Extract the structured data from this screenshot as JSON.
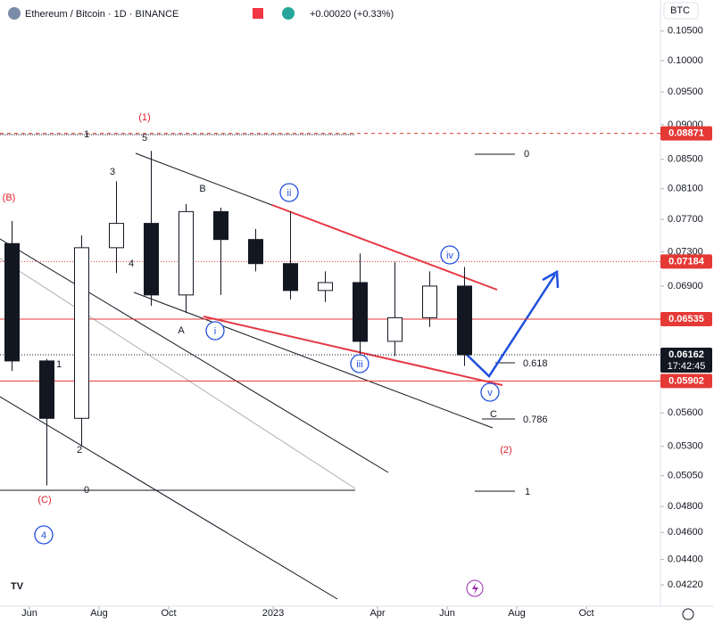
{
  "header": {
    "symbol": "Ethereum / Bitcoin · 1D · BINANCE",
    "change": "+0.00020 (+0.33%)",
    "currency": "BTC"
  },
  "chart_data": {
    "type": "candlestick",
    "log_scale": true,
    "x": [
      "2022-05",
      "2022-06",
      "2022-07",
      "2022-08",
      "2022-09",
      "2022-10",
      "2022-11",
      "2022-12",
      "2023-01",
      "2023-02",
      "2023-03",
      "2023-04",
      "2023-05",
      "2023-06"
    ],
    "open": [
      0.074,
      0.061,
      0.0555,
      0.0735,
      0.0765,
      0.068,
      0.078,
      0.0745,
      0.0716,
      0.0685,
      0.0694,
      0.063,
      0.0655,
      0.069
    ],
    "high": [
      0.0768,
      0.0612,
      0.075,
      0.082,
      0.0862,
      0.079,
      0.0785,
      0.0758,
      0.078,
      0.0707,
      0.0728,
      0.0718,
      0.0707,
      0.0712
    ],
    "low": [
      0.06,
      0.0497,
      0.053,
      0.0705,
      0.0668,
      0.066,
      0.068,
      0.0707,
      0.0675,
      0.0672,
      0.0615,
      0.0615,
      0.0645,
      0.0605
    ],
    "close": [
      0.061,
      0.0555,
      0.0735,
      0.0765,
      0.068,
      0.078,
      0.0745,
      0.0716,
      0.0685,
      0.0694,
      0.063,
      0.0655,
      0.069,
      0.06162
    ],
    "xlim": [
      "2022-05",
      "2023-11"
    ],
    "xticks": [
      {
        "value": "2022-06",
        "label": "Jun"
      },
      {
        "value": "2022-08",
        "label": "Aug"
      },
      {
        "value": "2022-10",
        "label": "Oct"
      },
      {
        "value": "2023-01",
        "label": "2023"
      },
      {
        "value": "2023-04",
        "label": "Apr"
      },
      {
        "value": "2023-06",
        "label": "Jun"
      },
      {
        "value": "2023-08",
        "label": "Aug"
      },
      {
        "value": "2023-10",
        "label": "Oct"
      }
    ],
    "ylim": [
      0.04074,
      0.1105
    ],
    "yticks": [
      {
        "value": 0.105,
        "label": "0.10500"
      },
      {
        "value": 0.1,
        "label": "0.10000"
      },
      {
        "value": 0.095,
        "label": "0.09500"
      },
      {
        "value": 0.09,
        "label": "0.09000"
      },
      {
        "value": 0.085,
        "label": "0.08500"
      },
      {
        "value": 0.081,
        "label": "0.08100"
      },
      {
        "value": 0.077,
        "label": "0.07700"
      },
      {
        "value": 0.073,
        "label": "0.07300"
      },
      {
        "value": 0.069,
        "label": "0.06900"
      },
      {
        "value": 0.056,
        "label": "0.05600"
      },
      {
        "value": 0.053,
        "label": "0.05300"
      },
      {
        "value": 0.0505,
        "label": "0.05050"
      },
      {
        "value": 0.048,
        "label": "0.04800"
      },
      {
        "value": 0.046,
        "label": "0.04600"
      },
      {
        "value": 0.044,
        "label": "0.04400"
      },
      {
        "value": 0.0422,
        "label": "0.04220"
      }
    ],
    "price_levels": [
      {
        "value": 0.08871,
        "label": "0.08871",
        "color": "#e53935",
        "style": "dashed"
      },
      {
        "value": 0.07184,
        "label": "0.07184",
        "color": "#e53935",
        "style": "dotted"
      },
      {
        "value": 0.06535,
        "label": "0.06535",
        "color": "#e53935",
        "style": "solid"
      },
      {
        "value": 0.06162,
        "label": "0.06162",
        "color": "#131722",
        "style": "dotted",
        "countdown": "17:42:45"
      },
      {
        "value": 0.05902,
        "label": "0.05902",
        "color": "#e53935",
        "style": "solid"
      }
    ],
    "wave_labels": [
      {
        "text": "(1)",
        "style": "red"
      },
      {
        "text": "5",
        "style": "black"
      },
      {
        "text": "3",
        "style": "black"
      },
      {
        "text": "4",
        "style": "black"
      },
      {
        "text": "B",
        "style": "black"
      },
      {
        "text": "A",
        "style": "black"
      },
      {
        "text": "(B)",
        "style": "red"
      },
      {
        "text": "1",
        "style": "black"
      },
      {
        "text": "2",
        "style": "black"
      },
      {
        "text": "(C)",
        "style": "red"
      },
      {
        "text": "4",
        "style": "circle"
      },
      {
        "text": "i",
        "style": "circle"
      },
      {
        "text": "ii",
        "style": "circle"
      },
      {
        "text": "iii",
        "style": "circle"
      },
      {
        "text": "iv",
        "style": "circle"
      },
      {
        "text": "v",
        "style": "circle"
      },
      {
        "text": "C",
        "style": "black"
      },
      {
        "text": "(2)",
        "style": "red"
      }
    ],
    "fib_labels": [
      "0",
      "0.618",
      "0.786",
      "1",
      "1",
      "0"
    ]
  }
}
